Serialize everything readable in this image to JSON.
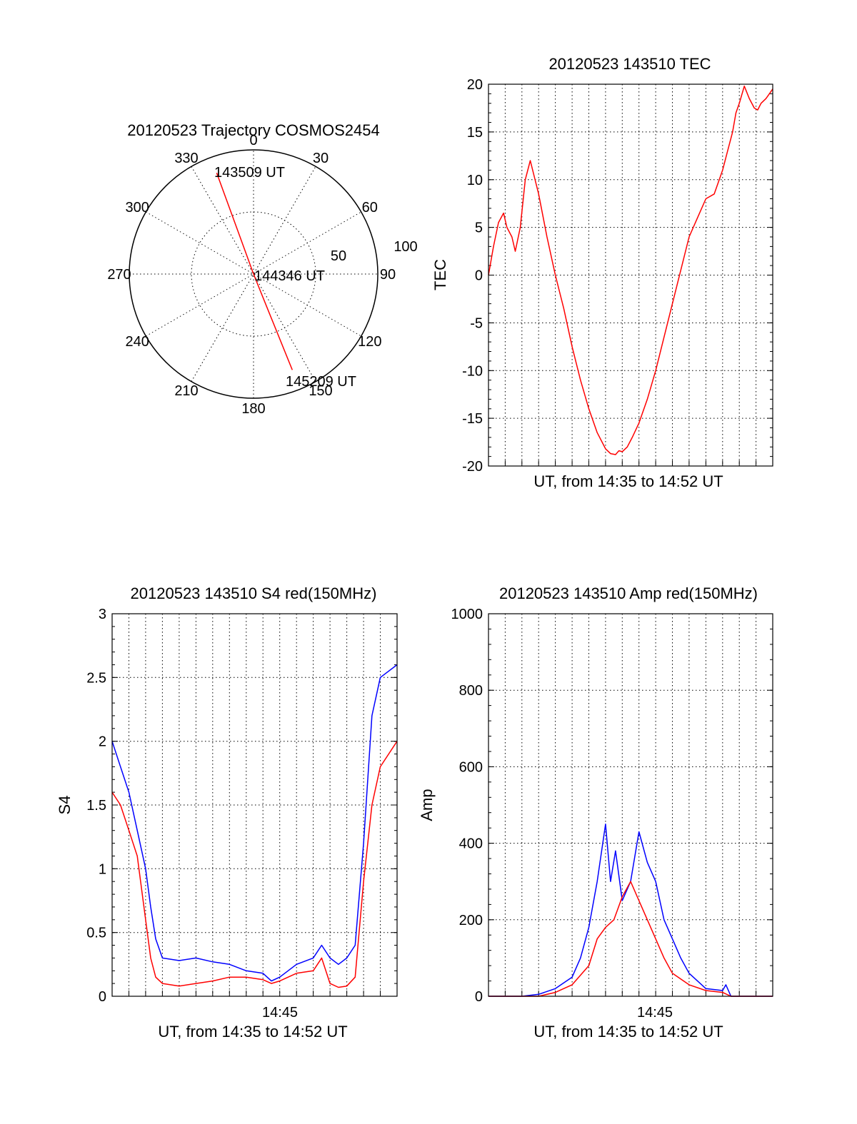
{
  "colors": {
    "red": "#ff0000",
    "blue": "#0000ff",
    "axis": "#000000"
  },
  "chart_data": [
    {
      "id": "trajectory",
      "type": "polar",
      "title": "20120523 Trajectory COSMOS2454",
      "angle_labels": [
        "0",
        "30",
        "60",
        "90",
        "120",
        "150",
        "180",
        "210",
        "240",
        "270",
        "300",
        "330"
      ],
      "radial_labels": [
        "50",
        "100"
      ],
      "grid": true,
      "series": [
        {
          "color": "red",
          "points": [
            {
              "az": 340,
              "el": 12
            },
            {
              "az": 340,
              "el": 60
            },
            {
              "az": 0,
              "el": 90
            },
            {
              "az": 158,
              "el": 60
            },
            {
              "az": 158,
              "el": 15
            }
          ]
        }
      ],
      "annotations": [
        "143509 UT",
        "144346 UT",
        "145209 UT"
      ]
    },
    {
      "id": "tec",
      "type": "line",
      "title": "20120523 143510 TEC",
      "xlabel": "UT, from 14:35 to 14:52 UT",
      "ylabel": "TEC",
      "xlim": [
        0,
        17
      ],
      "ylim": [
        -20,
        20
      ],
      "yticks": [
        "20",
        "15",
        "10",
        "5",
        "0",
        "-5",
        "-10",
        "-15",
        "-20"
      ],
      "grid": true,
      "series": [
        {
          "color": "red",
          "x": [
            0,
            0.3,
            0.6,
            0.9,
            1.1,
            1.4,
            1.6,
            1.9,
            2.2,
            2.5,
            3.0,
            3.5,
            4.0,
            4.5,
            5.0,
            5.5,
            6.0,
            6.5,
            7.0,
            7.3,
            7.6,
            7.8,
            8.0,
            8.3,
            8.6,
            9.0,
            9.5,
            10.0,
            10.5,
            11.0,
            11.5,
            12.0,
            12.5,
            13.0,
            13.5,
            14.0,
            14.3,
            14.6,
            14.8,
            15.0,
            15.3,
            15.6,
            15.9,
            16.1,
            16.3,
            16.6,
            16.8,
            17.0
          ],
          "y": [
            0,
            3,
            5.5,
            6.5,
            5,
            4,
            2.5,
            5,
            10,
            12,
            8.5,
            4,
            0,
            -3.5,
            -7.5,
            -11,
            -14,
            -16.5,
            -18.2,
            -18.7,
            -18.8,
            -18.4,
            -18.5,
            -18,
            -17,
            -15.5,
            -13,
            -10,
            -6.5,
            -3,
            0.5,
            4,
            6,
            8,
            8.5,
            11,
            13,
            15,
            17,
            18,
            19.8,
            18.5,
            17.5,
            17.3,
            18,
            18.5,
            19,
            19.5
          ]
        }
      ]
    },
    {
      "id": "s4",
      "type": "line",
      "title": "20120523 143510 S4 red(150MHz)",
      "xlabel": "UT, from 14:35 to 14:52 UT",
      "ylabel": "S4",
      "xlim": [
        0,
        17
      ],
      "ylim": [
        0,
        3
      ],
      "yticks": [
        "0",
        "0.5",
        "1",
        "1.5",
        "2",
        "2.5",
        "3"
      ],
      "xtick_label": "14:45",
      "xtick_at": 10,
      "grid": true,
      "series": [
        {
          "color": "blue",
          "x": [
            0,
            0.5,
            1.0,
            1.5,
            2.0,
            2.3,
            2.6,
            3.0,
            4.0,
            5.0,
            6.0,
            7.0,
            8.0,
            9.0,
            9.5,
            10.0,
            11.0,
            12.0,
            12.5,
            13.0,
            13.5,
            14.0,
            14.5,
            15.0,
            15.5,
            16.0,
            17.0
          ],
          "y": [
            2.0,
            1.8,
            1.6,
            1.3,
            1.0,
            0.7,
            0.45,
            0.3,
            0.28,
            0.3,
            0.27,
            0.25,
            0.2,
            0.18,
            0.12,
            0.15,
            0.25,
            0.3,
            0.4,
            0.3,
            0.25,
            0.3,
            0.4,
            1.2,
            2.2,
            2.5,
            2.6
          ]
        },
        {
          "color": "red",
          "x": [
            0,
            0.5,
            1.0,
            1.5,
            2.0,
            2.3,
            2.6,
            3.0,
            4.0,
            5.0,
            6.0,
            7.0,
            8.0,
            9.0,
            9.5,
            10.0,
            11.0,
            12.0,
            12.5,
            13.0,
            13.5,
            14.0,
            14.5,
            15.0,
            15.5,
            16.0,
            17.0
          ],
          "y": [
            1.6,
            1.5,
            1.3,
            1.1,
            0.6,
            0.3,
            0.15,
            0.1,
            0.08,
            0.1,
            0.12,
            0.15,
            0.15,
            0.13,
            0.1,
            0.12,
            0.18,
            0.2,
            0.3,
            0.1,
            0.07,
            0.08,
            0.15,
            0.9,
            1.5,
            1.8,
            2.0
          ]
        }
      ]
    },
    {
      "id": "amp",
      "type": "line",
      "title": "20120523 143510 Amp red(150MHz)",
      "xlabel": "UT, from 14:35 to 14:52 UT",
      "ylabel": "Amp",
      "xlim": [
        0,
        17
      ],
      "ylim": [
        0,
        1000
      ],
      "yticks": [
        "0",
        "200",
        "400",
        "600",
        "800",
        "1000"
      ],
      "xtick_label": "14:45",
      "xtick_at": 10,
      "grid": true,
      "series": [
        {
          "color": "blue",
          "x": [
            0,
            2,
            3,
            4,
            5,
            5.5,
            6,
            6.5,
            7,
            7.3,
            7.6,
            8,
            8.5,
            9,
            9.5,
            10,
            10.5,
            11,
            11.5,
            12,
            13,
            14,
            14.2,
            14.5,
            17
          ],
          "y": [
            0,
            0,
            5,
            20,
            50,
            100,
            180,
            300,
            450,
            300,
            380,
            250,
            300,
            430,
            350,
            300,
            200,
            150,
            100,
            60,
            20,
            15,
            30,
            0,
            0
          ]
        },
        {
          "color": "red",
          "x": [
            0,
            3,
            4,
            5,
            6,
            6.5,
            7,
            7.5,
            8,
            8.5,
            9,
            9.5,
            10,
            10.5,
            11,
            12,
            13,
            14,
            14.5,
            17
          ],
          "y": [
            0,
            0,
            10,
            30,
            80,
            150,
            180,
            200,
            260,
            300,
            250,
            200,
            150,
            100,
            60,
            30,
            15,
            10,
            0,
            0
          ]
        }
      ]
    }
  ]
}
